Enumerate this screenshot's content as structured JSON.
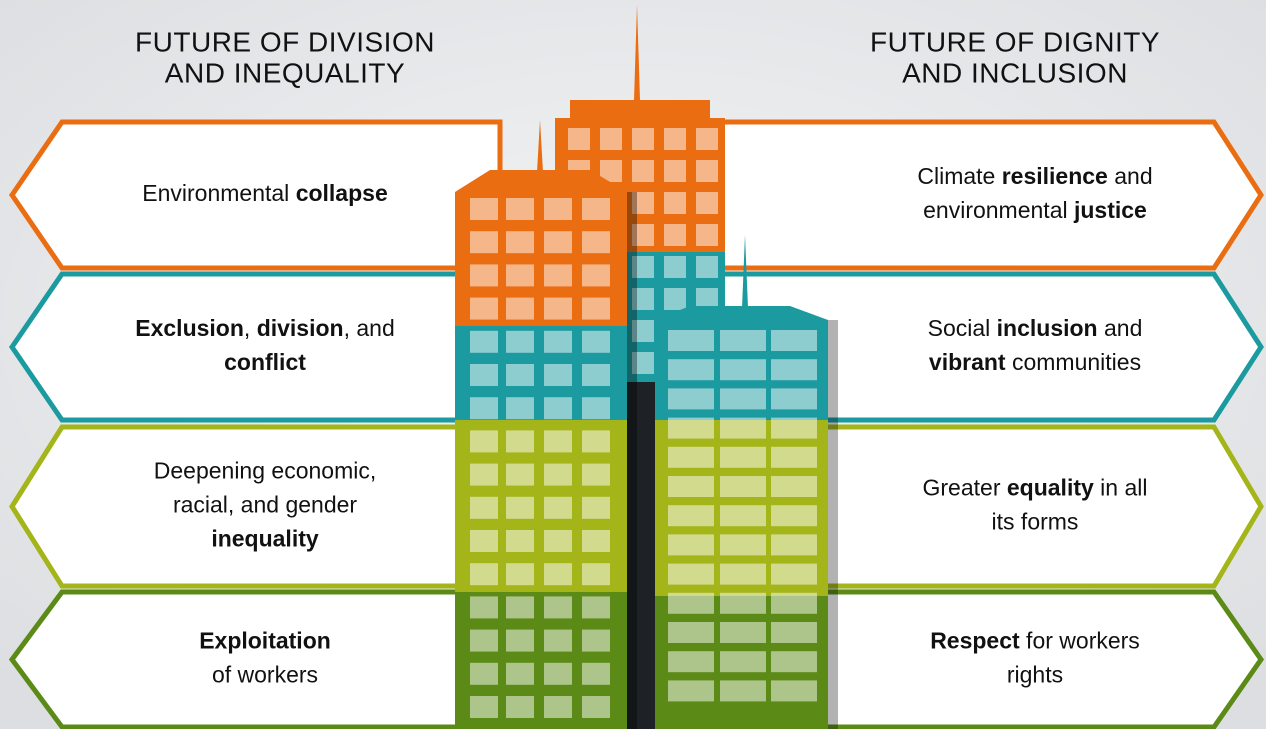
{
  "headers": {
    "left": [
      "FUTURE OF DIVISION",
      "AND INEQUALITY"
    ],
    "right": [
      "FUTURE OF DIGNITY",
      "AND INCLUSION"
    ]
  },
  "rows": [
    {
      "color": "#ea6d12",
      "left": [
        [
          {
            "t": "Environmental "
          },
          {
            "t": "collapse",
            "b": true
          }
        ]
      ],
      "right": [
        [
          {
            "t": "Climate "
          },
          {
            "t": "resilience",
            "b": true
          },
          {
            "t": " and"
          }
        ],
        [
          {
            "t": "environmental "
          },
          {
            "t": "justice",
            "b": true
          }
        ]
      ]
    },
    {
      "color": "#1b9aa0",
      "left": [
        [
          {
            "t": "Exclusion",
            "b": true
          },
          {
            "t": ", "
          },
          {
            "t": "division",
            "b": true
          },
          {
            "t": ", and"
          }
        ],
        [
          {
            "t": "conflict",
            "b": true
          }
        ]
      ],
      "right": [
        [
          {
            "t": "Social "
          },
          {
            "t": "inclusion",
            "b": true
          },
          {
            "t": " and"
          }
        ],
        [
          {
            "t": "vibrant",
            "b": true
          },
          {
            "t": " communities"
          }
        ]
      ]
    },
    {
      "color": "#a4b51a",
      "left": [
        [
          {
            "t": "Deepening economic,"
          }
        ],
        [
          {
            "t": "racial, and gender"
          }
        ],
        [
          {
            "t": "inequality",
            "b": true
          }
        ]
      ],
      "right": [
        [
          {
            "t": "Greater "
          },
          {
            "t": "equality",
            "b": true
          },
          {
            "t": " in all"
          }
        ],
        [
          {
            "t": "its forms"
          }
        ]
      ]
    },
    {
      "color": "#5b8a16",
      "left": [
        [
          {
            "t": "Exploitation",
            "b": true
          }
        ],
        [
          {
            "t": "of workers"
          }
        ]
      ],
      "right": [
        [
          {
            "t": "Respect",
            "b": true
          },
          {
            "t": " for workers"
          }
        ],
        [
          {
            "t": "rights"
          }
        ]
      ]
    }
  ]
}
